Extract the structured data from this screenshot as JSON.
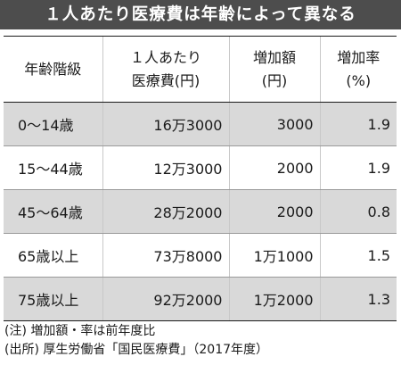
{
  "title": "１人あたり医療費は年齢によって異なる",
  "table": {
    "headers": {
      "age": "年齢階級",
      "cost_line1": "１人あたり",
      "cost_line2": "医療費(円)",
      "increase_line1": "増加額",
      "increase_line2": "(円)",
      "rate_line1": "増加率",
      "rate_line2": "(%)"
    },
    "rows": [
      {
        "age": "0～14歳",
        "cost": "16万3000",
        "increase": "3000",
        "rate": "1.9",
        "shaded": true
      },
      {
        "age": "15～44歳",
        "cost": "12万3000",
        "increase": "2000",
        "rate": "1.9",
        "shaded": false
      },
      {
        "age": "45～64歳",
        "cost": "28万2000",
        "increase": "2000",
        "rate": "0.8",
        "shaded": true
      },
      {
        "age": "65歳以上",
        "cost": "73万8000",
        "increase": "1万1000",
        "rate": "1.5",
        "shaded": false
      },
      {
        "age": "75歳以上",
        "cost": "92万2000",
        "increase": "1万2000",
        "rate": "1.3",
        "shaded": true
      }
    ]
  },
  "notes": {
    "note": "(注) 増加額・率は前年度比",
    "source": "(出所) 厚生労働省「国民医療費」（2017年度）"
  },
  "colors": {
    "title_bg": "#4d4d4d",
    "title_text": "#ffffff",
    "shaded_row": "#d9d9d9"
  }
}
